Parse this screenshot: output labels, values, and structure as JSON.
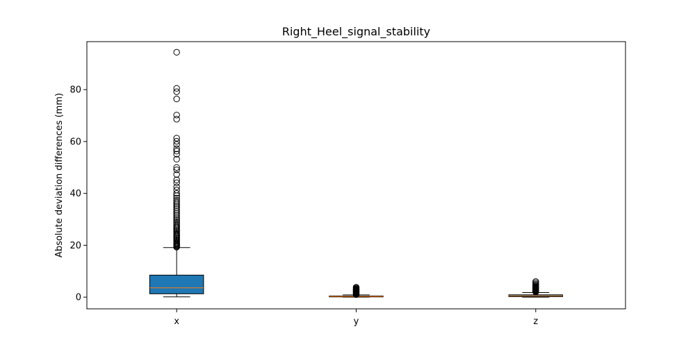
{
  "chart_data": {
    "type": "box",
    "title": "Right_Heel_signal_stability",
    "xlabel": "",
    "ylabel": "Absolute deviation differences (mm)",
    "ylim": [
      -4.5,
      98.5
    ],
    "yticks": [
      0,
      20,
      40,
      60,
      80
    ],
    "categories": [
      "x",
      "y",
      "z"
    ],
    "box_color": "#1f77b4",
    "median_color": "#ff7f0e",
    "grid": false,
    "legend": "none",
    "boxes": [
      {
        "label": "x",
        "whisker_low": 0.1,
        "q1": 1.3,
        "median": 3.6,
        "q3": 8.5,
        "whisker_high": 19.1,
        "outliers": [
          19.3,
          19.6,
          19.9,
          20.2,
          20.5,
          20.8,
          21.1,
          21.5,
          21.9,
          22.3,
          22.7,
          23.1,
          23.5,
          23.9,
          24.3,
          24.8,
          25.3,
          25.8,
          26.3,
          26.8,
          27.3,
          27.9,
          28.5,
          29.1,
          29.7,
          30.3,
          31.0,
          31.7,
          32.4,
          33.1,
          33.8,
          34.5,
          35.2,
          35.9,
          36.6,
          37.3,
          38.2,
          39.1,
          40.0,
          41.3,
          42.5,
          44.1,
          45.2,
          47.3,
          49.1,
          50.0,
          53.2,
          55.1,
          56.3,
          57.2,
          58.9,
          60.1,
          61.3,
          68.6,
          70.2,
          76.4,
          79.2,
          80.5,
          94.4
        ]
      },
      {
        "label": "y",
        "whisker_low": 0.0,
        "q1": 0.1,
        "median": 0.25,
        "q3": 0.45,
        "whisker_high": 0.9,
        "outliers": [
          1.0,
          1.2,
          1.4,
          1.6,
          1.8,
          2.0,
          2.2,
          2.4,
          2.6,
          2.8,
          3.0,
          3.2,
          3.5,
          3.8
        ]
      },
      {
        "label": "z",
        "whisker_low": 0.0,
        "q1": 0.2,
        "median": 0.5,
        "q3": 0.9,
        "whisker_high": 1.8,
        "outliers": [
          2.0,
          2.2,
          2.4,
          2.6,
          2.8,
          3.0,
          3.2,
          3.4,
          3.6,
          3.8,
          4.0,
          4.3,
          4.6,
          5.0,
          5.5,
          6.0
        ]
      }
    ]
  }
}
